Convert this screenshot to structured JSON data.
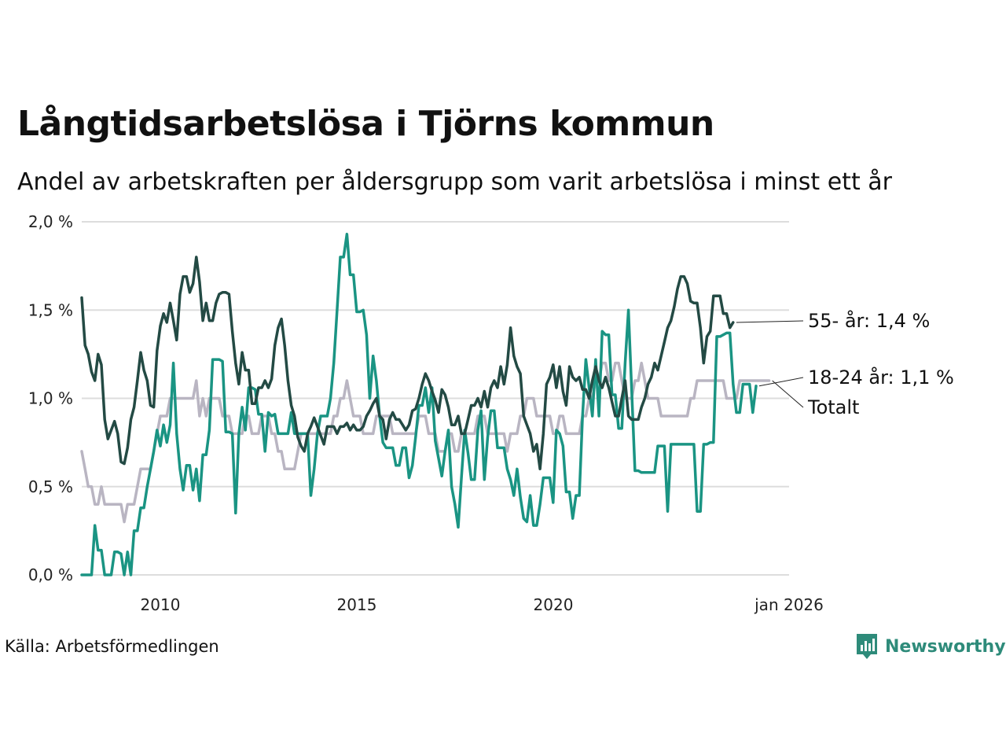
{
  "title": "Långtidsarbetslösa i Tjörns kommun",
  "subtitle": "Andel av arbetskraften per åldersgrupp som varit arbetslösa i minst ett år",
  "source": "Källa: Arbetsförmedlingen",
  "brand": "Newsworthy",
  "colors": {
    "series_55": "#234a44",
    "series_18_24": "#1a9483",
    "series_total": "#b9b5c2",
    "grid": "#dddddd",
    "brand": "#2e8b7a"
  },
  "chart_data": {
    "type": "line",
    "title": "Långtidsarbetslösa i Tjörns kommun",
    "subtitle": "Andel av arbetskraften per åldersgrupp som varit arbetslösa i minst ett år",
    "x_start": 2008.0,
    "x_step_years": 0.0833,
    "xlim": [
      2008.0,
      2026.0
    ],
    "ylim": [
      0,
      2.0
    ],
    "y_ticks": [
      {
        "value": 0.0,
        "label": "0,0 %"
      },
      {
        "value": 0.5,
        "label": "0,5 %"
      },
      {
        "value": 1.0,
        "label": "1,0 %"
      },
      {
        "value": 1.5,
        "label": "1,5 %"
      },
      {
        "value": 2.0,
        "label": "2,0 %"
      }
    ],
    "x_ticks": [
      {
        "value": 2010,
        "label": "2010"
      },
      {
        "value": 2015,
        "label": "2015"
      },
      {
        "value": 2020,
        "label": "2020"
      },
      {
        "value": 2026,
        "label": "jan 2026"
      }
    ],
    "grid": true,
    "series": [
      {
        "name": "Totalt",
        "end_label": "Totalt",
        "color_key": "series_total",
        "values": [
          0.7,
          0.6,
          0.5,
          0.5,
          0.4,
          0.4,
          0.5,
          0.4,
          0.4,
          0.4,
          0.4,
          0.4,
          0.4,
          0.3,
          0.4,
          0.4,
          0.4,
          0.5,
          0.6,
          0.6,
          0.6,
          0.6,
          0.7,
          0.8,
          0.9,
          0.9,
          0.9,
          1.0,
          1.0,
          1.0,
          1.0,
          1.0,
          1.0,
          1.0,
          1.0,
          1.1,
          0.9,
          1.0,
          0.9,
          1.0,
          1.0,
          1.0,
          1.0,
          0.9,
          0.9,
          0.9,
          0.8,
          0.8,
          0.8,
          0.8,
          0.9,
          0.9,
          0.8,
          0.8,
          0.8,
          0.9,
          0.9,
          0.9,
          0.8,
          0.8,
          0.7,
          0.7,
          0.6,
          0.6,
          0.6,
          0.6,
          0.7,
          0.8,
          0.8,
          0.8,
          0.8,
          0.8,
          0.8,
          0.8,
          0.8,
          0.8,
          0.8,
          0.9,
          0.9,
          1.0,
          1.0,
          1.1,
          1.0,
          0.9,
          0.9,
          0.9,
          0.8,
          0.8,
          0.8,
          0.8,
          0.9,
          0.9,
          0.9,
          0.9,
          0.9,
          0.8,
          0.8,
          0.8,
          0.8,
          0.8,
          0.8,
          0.8,
          0.8,
          0.9,
          0.9,
          0.9,
          0.8,
          0.8,
          0.8,
          0.7,
          0.7,
          0.7,
          0.8,
          0.8,
          0.7,
          0.7,
          0.8,
          0.8,
          0.8,
          0.8,
          0.8,
          0.9,
          0.9,
          0.9,
          0.8,
          0.8,
          0.8,
          0.8,
          0.8,
          0.8,
          0.7,
          0.8,
          0.8,
          0.8,
          0.9,
          0.9,
          1.0,
          1.0,
          1.0,
          0.9,
          0.9,
          0.9,
          0.9,
          0.9,
          0.8,
          0.8,
          0.9,
          0.9,
          0.8,
          0.8,
          0.8,
          0.8,
          0.8,
          0.9,
          0.9,
          1.0,
          1.0,
          1.1,
          1.1,
          1.2,
          1.2,
          1.1,
          1.1,
          1.2,
          1.2,
          1.1,
          1.0,
          1.0,
          1.0,
          1.1,
          1.1,
          1.2,
          1.1,
          1.0,
          1.0,
          1.0,
          1.0,
          0.9,
          0.9,
          0.9,
          0.9,
          0.9,
          0.9,
          0.9,
          0.9,
          0.9,
          1.0,
          1.0,
          1.1,
          1.1,
          1.1,
          1.1,
          1.1,
          1.1,
          1.1,
          1.1,
          1.1,
          1.0,
          1.0,
          1.0,
          1.0,
          1.1,
          1.1,
          1.1,
          1.1,
          1.1,
          1.1,
          1.1,
          1.1,
          1.1,
          1.1
        ]
      },
      {
        "name": "18-24 år",
        "end_label": "18-24 år: 1,1 %",
        "color_key": "series_18_24",
        "values": [
          0.0,
          0.0,
          0.0,
          0.0,
          0.28,
          0.14,
          0.14,
          0.0,
          0.0,
          0.0,
          0.13,
          0.13,
          0.12,
          0.0,
          0.13,
          0.0,
          0.25,
          0.25,
          0.38,
          0.38,
          0.5,
          0.6,
          0.7,
          0.82,
          0.73,
          0.85,
          0.75,
          0.85,
          1.2,
          0.8,
          0.6,
          0.48,
          0.62,
          0.62,
          0.48,
          0.6,
          0.42,
          0.68,
          0.68,
          0.82,
          1.22,
          1.22,
          1.22,
          1.21,
          0.81,
          0.81,
          0.8,
          0.35,
          0.8,
          0.95,
          0.82,
          1.06,
          1.06,
          1.05,
          0.91,
          0.91,
          0.7,
          0.92,
          0.9,
          0.91,
          0.8,
          0.8,
          0.8,
          0.8,
          0.92,
          0.8,
          0.8,
          0.8,
          0.8,
          0.8,
          0.45,
          0.6,
          0.8,
          0.9,
          0.9,
          0.9,
          1.0,
          1.2,
          1.5,
          1.8,
          1.8,
          1.93,
          1.7,
          1.7,
          1.49,
          1.49,
          1.5,
          1.36,
          1.0,
          1.24,
          1.1,
          0.9,
          0.75,
          0.72,
          0.72,
          0.72,
          0.62,
          0.62,
          0.72,
          0.72,
          0.55,
          0.62,
          0.78,
          0.96,
          0.96,
          1.06,
          0.92,
          1.06,
          0.76,
          0.66,
          0.56,
          0.7,
          0.82,
          0.5,
          0.4,
          0.27,
          0.55,
          0.82,
          0.69,
          0.54,
          0.54,
          0.82,
          0.93,
          0.54,
          0.78,
          0.93,
          0.93,
          0.72,
          0.72,
          0.72,
          0.6,
          0.54,
          0.45,
          0.6,
          0.44,
          0.32,
          0.3,
          0.45,
          0.28,
          0.28,
          0.4,
          0.55,
          0.55,
          0.55,
          0.41,
          0.82,
          0.8,
          0.73,
          0.47,
          0.47,
          0.32,
          0.45,
          0.45,
          0.9,
          1.22,
          1.06,
          0.9,
          1.22,
          0.9,
          1.38,
          1.36,
          1.36,
          1.02,
          1.02,
          0.83,
          0.83,
          1.2,
          1.5,
          1.05,
          0.59,
          0.59,
          0.58,
          0.58,
          0.58,
          0.58,
          0.58,
          0.73,
          0.73,
          0.73,
          0.36,
          0.74,
          0.74,
          0.74,
          0.74,
          0.74,
          0.74,
          0.74,
          0.74,
          0.36,
          0.36,
          0.74,
          0.74,
          0.75,
          0.75,
          1.35,
          1.35,
          1.36,
          1.37,
          1.37,
          1.08,
          0.92,
          0.92,
          1.08,
          1.08,
          1.08,
          0.92,
          1.07
        ]
      },
      {
        "name": "55- år",
        "end_label": "55- år: 1,4 %",
        "color_key": "series_55",
        "values": [
          1.57,
          1.3,
          1.25,
          1.15,
          1.1,
          1.25,
          1.19,
          0.88,
          0.77,
          0.82,
          0.87,
          0.8,
          0.64,
          0.63,
          0.72,
          0.88,
          0.95,
          1.1,
          1.26,
          1.16,
          1.1,
          0.96,
          0.95,
          1.27,
          1.41,
          1.48,
          1.43,
          1.54,
          1.44,
          1.33,
          1.59,
          1.69,
          1.69,
          1.6,
          1.65,
          1.8,
          1.66,
          1.44,
          1.54,
          1.44,
          1.44,
          1.54,
          1.59,
          1.6,
          1.6,
          1.59,
          1.38,
          1.2,
          1.08,
          1.26,
          1.16,
          1.16,
          0.97,
          0.97,
          1.06,
          1.06,
          1.1,
          1.06,
          1.11,
          1.3,
          1.4,
          1.45,
          1.3,
          1.1,
          0.96,
          0.9,
          0.78,
          0.73,
          0.7,
          0.8,
          0.84,
          0.89,
          0.84,
          0.79,
          0.74,
          0.84,
          0.84,
          0.84,
          0.8,
          0.84,
          0.84,
          0.86,
          0.82,
          0.85,
          0.82,
          0.82,
          0.84,
          0.9,
          0.93,
          0.97,
          1.0,
          0.9,
          0.88,
          0.77,
          0.88,
          0.92,
          0.88,
          0.88,
          0.85,
          0.82,
          0.85,
          0.93,
          0.94,
          1.0,
          1.08,
          1.14,
          1.1,
          1.04,
          0.99,
          0.92,
          1.05,
          1.02,
          0.95,
          0.85,
          0.85,
          0.9,
          0.8,
          0.8,
          0.88,
          0.96,
          0.96,
          1.0,
          0.95,
          1.04,
          0.95,
          1.06,
          1.1,
          1.06,
          1.18,
          1.08,
          1.19,
          1.4,
          1.24,
          1.18,
          1.14,
          0.9,
          0.85,
          0.8,
          0.7,
          0.74,
          0.6,
          0.8,
          1.08,
          1.12,
          1.19,
          1.06,
          1.18,
          1.04,
          0.96,
          1.18,
          1.12,
          1.1,
          1.12,
          1.05,
          1.05,
          1.0,
          1.1,
          1.18,
          1.1,
          1.06,
          1.12,
          1.06,
          0.98,
          0.9,
          0.9,
          1.0,
          1.1,
          0.9,
          0.88,
          0.88,
          0.88,
          0.95,
          1.0,
          1.08,
          1.12,
          1.2,
          1.16,
          1.24,
          1.32,
          1.4,
          1.44,
          1.52,
          1.62,
          1.69,
          1.69,
          1.65,
          1.55,
          1.54,
          1.54,
          1.4,
          1.2,
          1.35,
          1.38,
          1.58,
          1.58,
          1.58,
          1.48,
          1.48,
          1.4,
          1.43
        ]
      }
    ]
  }
}
